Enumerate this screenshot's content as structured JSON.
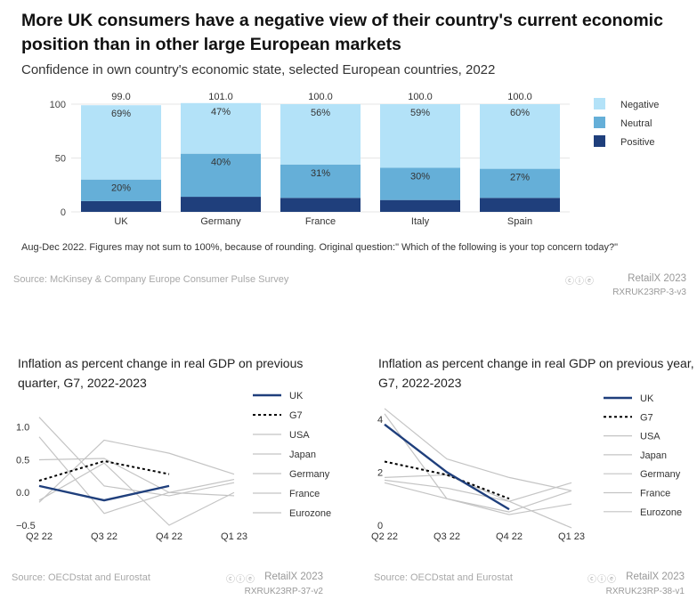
{
  "header": {
    "title": "More UK consumers have a negative view of their country's current economic position than in other large European markets",
    "subtitle": "Confidence in own country's economic state, selected European countries, 2022"
  },
  "footer1": {
    "note": "Aug-Dec 2022. Figures may not sum to 100%, because of rounding. Original question:\" Which of the following is your top concern today?\"",
    "source": "Source: McKinsey & Company Europe Consumer Pulse Survey",
    "brand": "RetailX 2023",
    "code": "RXRUK23RP-3-v3",
    "cc": "ⓒⓘⓔ"
  },
  "footer2": {
    "source": "Source: OECDstat and Eurostat",
    "brand": "RetailX 2023",
    "code": "RXRUK23RP-37-v2",
    "cc": "ⓒⓘⓔ"
  },
  "footer3": {
    "source": "Source: OECDstat and Eurostat",
    "brand": "RetailX 2023",
    "code": "RXRUK23RP-38-v1",
    "cc": "ⓒⓘⓔ"
  },
  "colors": {
    "negative": "#b3e2f8",
    "neutral": "#65afd8",
    "positive": "#1f3f7c",
    "uk": "#1f3f7c",
    "g7": "#000000",
    "other": "#c4c4c4"
  },
  "chart_data": [
    {
      "type": "bar",
      "stacked": true,
      "title": "Confidence in own country's economic state, selected European countries, 2022",
      "categories": [
        "UK",
        "Germany",
        "France",
        "Italy",
        "Spain"
      ],
      "totals": [
        "99.0",
        "101.0",
        "100.0",
        "100.0",
        "100.0"
      ],
      "series": [
        {
          "name": "Positive",
          "values": [
            10,
            14,
            13,
            11,
            13
          ],
          "labels": [
            "",
            "",
            "",
            "",
            ""
          ]
        },
        {
          "name": "Neutral",
          "values": [
            20,
            40,
            31,
            30,
            27
          ],
          "labels": [
            "20%",
            "40%",
            "31%",
            "30%",
            "27%"
          ]
        },
        {
          "name": "Negative",
          "values": [
            69,
            47,
            56,
            59,
            60
          ],
          "labels": [
            "69%",
            "47%",
            "56%",
            "59%",
            "60%"
          ]
        }
      ],
      "legend": [
        "Negative",
        "Neutral",
        "Positive"
      ],
      "yticks": [
        "0",
        "50",
        "100"
      ],
      "ylim": [
        0,
        100
      ]
    },
    {
      "type": "line",
      "title": "Inflation as percent change in real GDP on previous quarter, G7, 2022-2023",
      "x": [
        "Q2 22",
        "Q3 22",
        "Q4 22",
        "Q1 23"
      ],
      "yticks": [
        "−0.5",
        "0.0",
        "0.5",
        "1.0"
      ],
      "ylim": [
        -0.5,
        1.2
      ],
      "legend": [
        "UK",
        "G7",
        "USA",
        "Japan",
        "Germany",
        "France",
        "Eurozone"
      ],
      "series": [
        {
          "name": "UK",
          "values": [
            0.1,
            -0.12,
            0.1,
            null
          ]
        },
        {
          "name": "G7",
          "values": [
            0.18,
            0.48,
            0.28,
            null
          ]
        },
        {
          "name": "USA",
          "values": [
            -0.15,
            0.8,
            0.6,
            0.28
          ]
        },
        {
          "name": "Japan",
          "values": [
            1.15,
            0.1,
            -0.05,
            0.15
          ]
        },
        {
          "name": "Germany",
          "values": [
            -0.12,
            0.45,
            -0.5,
            0.0
          ]
        },
        {
          "name": "France",
          "values": [
            0.5,
            0.52,
            0.0,
            0.2
          ]
        },
        {
          "name": "Eurozone",
          "values": [
            0.85,
            -0.32,
            0.0,
            -0.05
          ]
        }
      ]
    },
    {
      "type": "line",
      "title": "Inflation as percent change in real GDP on previous year, G7, 2022-2023",
      "x": [
        "Q2 22",
        "Q3 22",
        "Q4 22",
        "Q1 23"
      ],
      "yticks": [
        "0",
        "2",
        "4"
      ],
      "ylim": [
        0,
        4.6
      ],
      "legend": [
        "UK",
        "G7",
        "USA",
        "Japan",
        "Germany",
        "France",
        "Eurozone"
      ],
      "series": [
        {
          "name": "UK",
          "values": [
            3.8,
            2.0,
            0.6,
            null
          ]
        },
        {
          "name": "G7",
          "values": [
            2.4,
            1.9,
            1.0,
            null
          ]
        },
        {
          "name": "USA",
          "values": [
            1.8,
            1.9,
            0.9,
            1.6
          ]
        },
        {
          "name": "Japan",
          "values": [
            1.6,
            1.0,
            0.5,
            1.3
          ]
        },
        {
          "name": "Germany",
          "values": [
            1.7,
            1.4,
            0.9,
            -0.1
          ]
        },
        {
          "name": "France",
          "values": [
            4.2,
            1.0,
            0.4,
            0.8
          ]
        },
        {
          "name": "Eurozone",
          "values": [
            4.4,
            2.5,
            1.8,
            1.3
          ]
        }
      ]
    }
  ]
}
